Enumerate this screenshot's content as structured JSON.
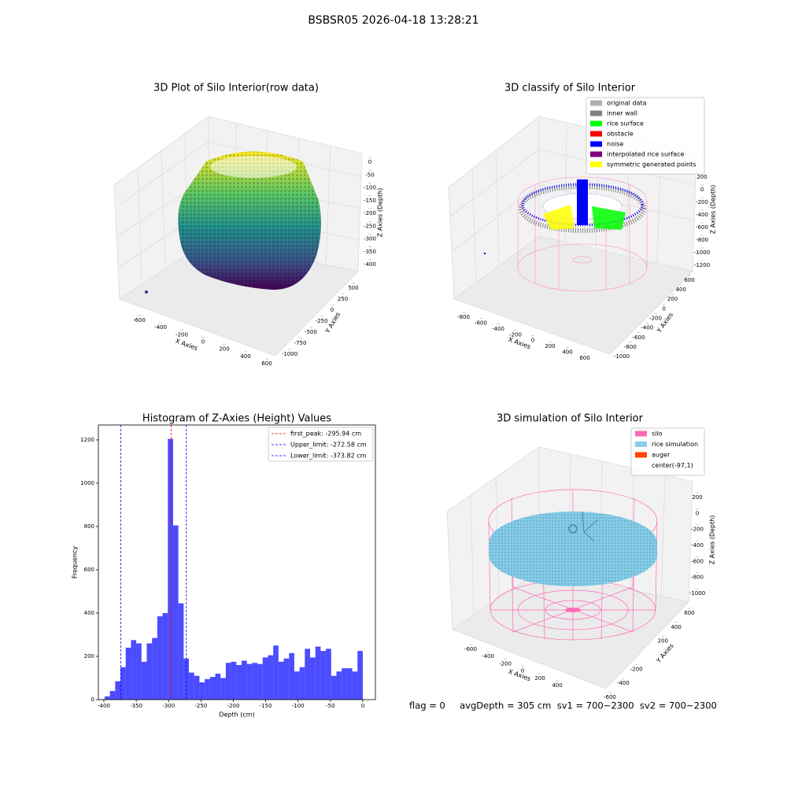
{
  "title": "BSBSR05 2026-04-18 13:28:21",
  "panels": [
    {
      "title": "3D Plot of Silo Interior(row data)",
      "x_label": "X Axies",
      "y_label": "Y Axies",
      "z_label": "Z Axies (Depth)",
      "xlim": [
        -720,
        700
      ],
      "xticks": [
        -600,
        -400,
        -200,
        0,
        200,
        400,
        600
      ],
      "ylim": [
        -1100,
        620
      ],
      "yticks": [
        500,
        250,
        0,
        -250,
        -500,
        -750,
        -1000
      ],
      "zlim": [
        -430,
        30
      ],
      "zticks": [
        0,
        -50,
        -100,
        -150,
        -200,
        -250,
        -300,
        -350,
        -400
      ]
    },
    {
      "title": "3D classify of Silo Interior",
      "x_label": "X Axies",
      "y_label": "Y Axies",
      "z_label": "Z Axies (Depth)",
      "xlim": [
        -900,
        700
      ],
      "xticks": [
        -800,
        -600,
        -400,
        -200,
        0,
        200,
        400,
        600
      ],
      "ylim": [
        -1100,
        700
      ],
      "yticks": [
        600,
        400,
        200,
        0,
        -200,
        -400,
        -600,
        -800,
        -1000
      ],
      "zlim": [
        -1250,
        300
      ],
      "zticks": [
        200,
        0,
        -200,
        -400,
        -600,
        -800,
        -1000,
        -1200
      ],
      "legend": [
        {
          "name": "original data",
          "color": "#b0b0b0"
        },
        {
          "name": "inner wall",
          "color": "#808080"
        },
        {
          "name": "rice surface",
          "color": "#00ff00"
        },
        {
          "name": "obstacle",
          "color": "#ff0000"
        },
        {
          "name": "noise",
          "color": "#0000ff"
        },
        {
          "name": "interpolated rice surface",
          "color": "#800080"
        },
        {
          "name": "symmetric generated points",
          "color": "#ffff00"
        }
      ]
    },
    {
      "title": "3D simulation of Silo Interior",
      "x_label": "X Axies",
      "y_label": "Y Axies",
      "z_label": "Z Axies (Depth)",
      "xlim": [
        -700,
        500
      ],
      "xticks": [
        -600,
        -400,
        -200,
        0,
        200,
        400
      ],
      "ylim": [
        -700,
        700
      ],
      "yticks": [
        600,
        400,
        200,
        -200,
        -400,
        -600
      ],
      "zlim": [
        -1050,
        280
      ],
      "zticks": [
        200,
        0,
        -200,
        -400,
        -600,
        -800,
        -1000
      ],
      "legend": [
        {
          "name": "silo",
          "color": "#ff69b4"
        },
        {
          "name": "rice simulation",
          "color": "#87ceeb"
        },
        {
          "name": "auger",
          "color": "#ff4500"
        },
        {
          "name": "center(-97,1)"
        }
      ]
    }
  ],
  "chart_data": {
    "type": "histogram",
    "title": "Histogram of Z-Axies (Height) Values",
    "x_label": "Depth (cm)",
    "y_label": "Frequency",
    "color": "#0000ff",
    "bins": [
      -407,
      -398.86,
      -390.72,
      -382.58,
      -374.44,
      -366.3,
      -358.16,
      -350.02,
      -341.88,
      -333.74,
      -325.6,
      -317.46,
      -309.32,
      -301.18,
      -293.04,
      -284.9,
      -276.76,
      -268.62,
      -260.48,
      -252.34,
      -244.2,
      -236.06,
      -227.92,
      -219.78,
      -211.64,
      -203.5,
      -195.36,
      -187.22,
      -179.08,
      -170.94,
      -162.8,
      -154.66,
      -146.52,
      -138.38,
      -130.24,
      -122.1,
      -113.96,
      -105.82,
      -97.68,
      -89.54,
      -81.4,
      -73.26,
      -65.12,
      -56.98,
      -48.84,
      -40.7,
      -32.56,
      -24.42,
      -16.28,
      -8.14,
      0
    ],
    "values": [
      2,
      15,
      40,
      85,
      150,
      240,
      275,
      260,
      175,
      260,
      285,
      385,
      400,
      1205,
      805,
      445,
      190,
      125,
      110,
      80,
      95,
      105,
      120,
      100,
      170,
      175,
      160,
      180,
      165,
      170,
      165,
      195,
      205,
      250,
      175,
      190,
      215,
      130,
      150,
      235,
      195,
      245,
      225,
      235,
      110,
      130,
      145,
      145,
      130,
      225
    ],
    "xlim": [
      -408.5,
      19.5
    ],
    "xticks": [
      -400,
      -350,
      -300,
      -250,
      -200,
      -150,
      -100,
      -50,
      0
    ],
    "ylim": [
      0,
      1269
    ],
    "yticks": [
      0,
      200,
      400,
      600,
      800,
      1000,
      1200
    ],
    "lines": [
      {
        "name": "first_peak: -295.94 cm",
        "value": -295.94,
        "color": "#ff0000"
      },
      {
        "name": "Upper_limit: -272.58 cm",
        "value": -272.58,
        "color": "#0000ff"
      },
      {
        "name": "Lower_limit: -373.82 cm",
        "value": -373.82,
        "color": "#0000ff"
      }
    ]
  },
  "footer": "flag = 0     avgDepth = 305 cm  sv1 = 700~2300  sv2 = 700~2300"
}
